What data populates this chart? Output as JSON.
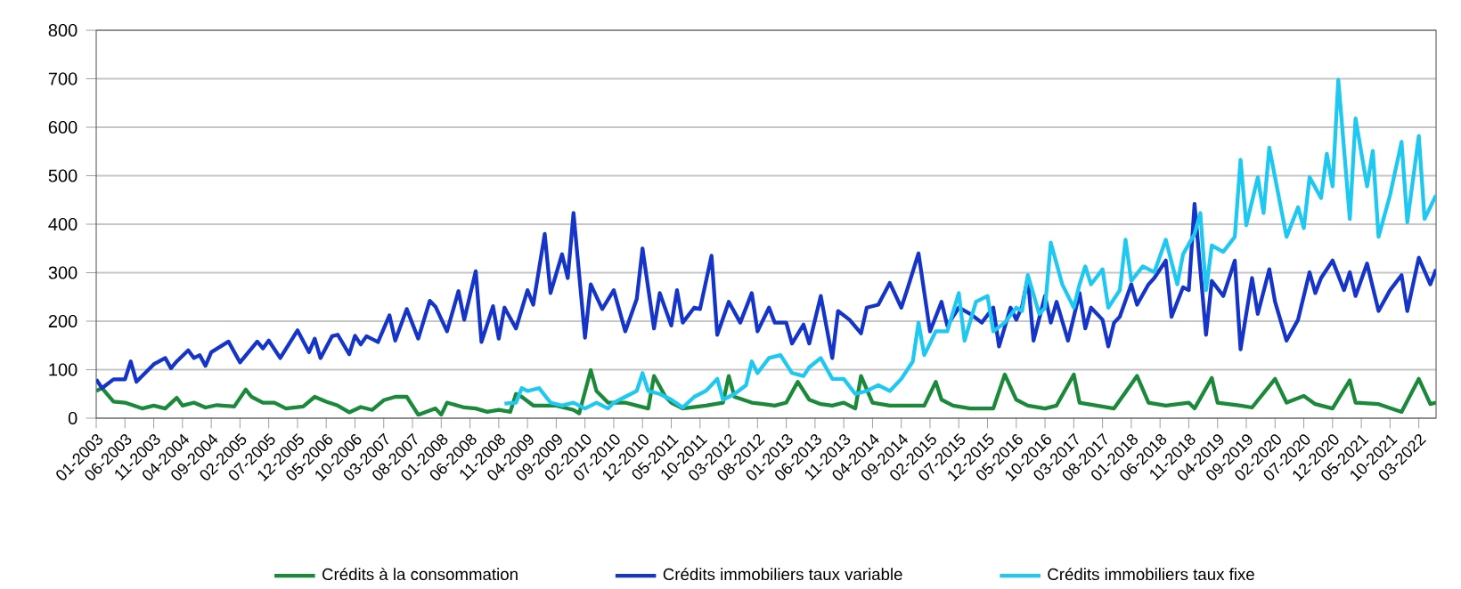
{
  "chart_data": {
    "type": "line",
    "xlim": [
      "2003-01",
      "2022-06"
    ],
    "ylim": [
      0,
      800
    ],
    "yticks": [
      0,
      100,
      200,
      300,
      400,
      500,
      600,
      700,
      800
    ],
    "xticks": [
      {
        "value": "2003-01",
        "label": "01-2003"
      },
      {
        "value": "2003-06",
        "label": "06-2003"
      },
      {
        "value": "2003-11",
        "label": "11-2003"
      },
      {
        "value": "2004-04",
        "label": "04-2004"
      },
      {
        "value": "2004-09",
        "label": "09-2004"
      },
      {
        "value": "2005-02",
        "label": "02-2005"
      },
      {
        "value": "2005-07",
        "label": "07-2005"
      },
      {
        "value": "2005-12",
        "label": "12-2005"
      },
      {
        "value": "2006-05",
        "label": "05-2006"
      },
      {
        "value": "2006-10",
        "label": "10-2006"
      },
      {
        "value": "2007-03",
        "label": "03-2007"
      },
      {
        "value": "2007-08",
        "label": "08-2007"
      },
      {
        "value": "2008-01",
        "label": "01-2008"
      },
      {
        "value": "2008-06",
        "label": "06-2008"
      },
      {
        "value": "2008-11",
        "label": "11-2008"
      },
      {
        "value": "2009-04",
        "label": "04-2009"
      },
      {
        "value": "2009-09",
        "label": "09-2009"
      },
      {
        "value": "2010-02",
        "label": "02-2010"
      },
      {
        "value": "2010-07",
        "label": "07-2010"
      },
      {
        "value": "2010-12",
        "label": "12-2010"
      },
      {
        "value": "2011-05",
        "label": "05-2011"
      },
      {
        "value": "2011-10",
        "label": "10-2011"
      },
      {
        "value": "2012-03",
        "label": "03-2012"
      },
      {
        "value": "2012-08",
        "label": "08-2012"
      },
      {
        "value": "2013-01",
        "label": "01-2013"
      },
      {
        "value": "2013-06",
        "label": "06-2013"
      },
      {
        "value": "2013-11",
        "label": "11-2013"
      },
      {
        "value": "2014-04",
        "label": "04-2014"
      },
      {
        "value": "2014-09",
        "label": "09-2014"
      },
      {
        "value": "2015-02",
        "label": "02-2015"
      },
      {
        "value": "2015-07",
        "label": "07-2015"
      },
      {
        "value": "2015-12",
        "label": "12-2015"
      },
      {
        "value": "2016-05",
        "label": "05-2016"
      },
      {
        "value": "2016-10",
        "label": "10-2016"
      },
      {
        "value": "2017-03",
        "label": "03-2017"
      },
      {
        "value": "2017-08",
        "label": "08-2017"
      },
      {
        "value": "2018-01",
        "label": "01-2018"
      },
      {
        "value": "2018-06",
        "label": "06-2018"
      },
      {
        "value": "2018-11",
        "label": "11-2018"
      },
      {
        "value": "2019-04",
        "label": "04-2019"
      },
      {
        "value": "2019-09",
        "label": "09-2019"
      },
      {
        "value": "2020-02",
        "label": "02-2020"
      },
      {
        "value": "2020-07",
        "label": "07-2020"
      },
      {
        "value": "2020-12",
        "label": "12-2020"
      },
      {
        "value": "2021-05",
        "label": "05-2021"
      },
      {
        "value": "2021-10",
        "label": "10-2021"
      },
      {
        "value": "2022-03",
        "label": "03-2022"
      }
    ],
    "grid": "y",
    "legend": "bottom",
    "marker": "none",
    "line_style": "solid",
    "series": [
      {
        "name": "Crédits à la consommation",
        "color": "#1a8a3a",
        "x": [
          "2003-01",
          "2003-02",
          "2003-04",
          "2003-06",
          "2003-09",
          "2003-11",
          "2004-01",
          "2004-03",
          "2004-04",
          "2004-06",
          "2004-08",
          "2004-10",
          "2005-01",
          "2005-03",
          "2005-04",
          "2005-06",
          "2005-08",
          "2005-10",
          "2006-01",
          "2006-03",
          "2006-05",
          "2006-07",
          "2006-09",
          "2006-11",
          "2007-01",
          "2007-03",
          "2007-05",
          "2007-07",
          "2007-09",
          "2007-12",
          "2008-01",
          "2008-02",
          "2008-05",
          "2008-07",
          "2008-09",
          "2008-11",
          "2009-01",
          "2009-02",
          "2009-03",
          "2009-05",
          "2009-09",
          "2009-12",
          "2010-01",
          "2010-03",
          "2010-04",
          "2010-06",
          "2010-09",
          "2010-11",
          "2011-01",
          "2011-02",
          "2011-04",
          "2011-05",
          "2011-07",
          "2011-11",
          "2012-02",
          "2012-03",
          "2012-04",
          "2012-07",
          "2012-09",
          "2012-11",
          "2013-01",
          "2013-03",
          "2013-05",
          "2013-07",
          "2013-09",
          "2013-11",
          "2014-01",
          "2014-02",
          "2014-04",
          "2014-07",
          "2014-10",
          "2015-01",
          "2015-03",
          "2015-04",
          "2015-06",
          "2015-09",
          "2015-11",
          "2016-01",
          "2016-03",
          "2016-05",
          "2016-07",
          "2016-10",
          "2016-12",
          "2017-03",
          "2017-04",
          "2017-07",
          "2017-10",
          "2018-02",
          "2018-04",
          "2018-07",
          "2018-11",
          "2018-12",
          "2019-03",
          "2019-04",
          "2019-08",
          "2019-10",
          "2020-02",
          "2020-04",
          "2020-07",
          "2020-09",
          "2020-12",
          "2021-03",
          "2021-04",
          "2021-08",
          "2021-12",
          "2022-03",
          "2022-05",
          "2022-06"
        ],
        "values": [
          56,
          62,
          34,
          32,
          20,
          26,
          20,
          42,
          26,
          32,
          22,
          27,
          24,
          59,
          44,
          32,
          32,
          20,
          24,
          44,
          34,
          26,
          12,
          23,
          17,
          37,
          44,
          44,
          7,
          20,
          7,
          32,
          22,
          20,
          13,
          17,
          13,
          50,
          44,
          26,
          26,
          17,
          10,
          99,
          56,
          32,
          32,
          26,
          20,
          87,
          44,
          32,
          20,
          26,
          32,
          87,
          44,
          32,
          29,
          26,
          32,
          75,
          38,
          29,
          26,
          32,
          20,
          87,
          32,
          26,
          26,
          26,
          75,
          38,
          26,
          20,
          20,
          20,
          90,
          38,
          26,
          20,
          26,
          90,
          32,
          26,
          20,
          87,
          32,
          26,
          32,
          20,
          83,
          32,
          26,
          22,
          81,
          32,
          46,
          29,
          20,
          78,
          32,
          29,
          13,
          81,
          29,
          32
        ]
      },
      {
        "name": "Crédits immobiliers taux variable",
        "color": "#1535c8",
        "x": [
          "2003-01",
          "2003-02",
          "2003-04",
          "2003-06",
          "2003-07",
          "2003-08",
          "2003-11",
          "2004-01",
          "2004-02",
          "2004-03",
          "2004-05",
          "2004-06",
          "2004-07",
          "2004-08",
          "2004-09",
          "2004-12",
          "2005-02",
          "2005-05",
          "2005-06",
          "2005-07",
          "2005-09",
          "2005-12",
          "2006-02",
          "2006-03",
          "2006-04",
          "2006-06",
          "2006-07",
          "2006-09",
          "2006-10",
          "2006-11",
          "2006-12",
          "2007-02",
          "2007-04",
          "2007-05",
          "2007-07",
          "2007-09",
          "2007-11",
          "2007-12",
          "2008-02",
          "2008-04",
          "2008-05",
          "2008-07",
          "2008-08",
          "2008-10",
          "2008-11",
          "2008-12",
          "2009-02",
          "2009-04",
          "2009-05",
          "2009-07",
          "2009-08",
          "2009-10",
          "2009-11",
          "2009-12",
          "2010-02",
          "2010-03",
          "2010-05",
          "2010-07",
          "2010-09",
          "2010-11",
          "2010-12",
          "2011-02",
          "2011-03",
          "2011-05",
          "2011-06",
          "2011-07",
          "2011-09",
          "2011-10",
          "2011-12",
          "2012-01",
          "2012-03",
          "2012-05",
          "2012-07",
          "2012-08",
          "2012-10",
          "2012-11",
          "2013-01",
          "2013-02",
          "2013-04",
          "2013-05",
          "2013-07",
          "2013-09",
          "2013-10",
          "2013-12",
          "2014-02",
          "2014-03",
          "2014-05",
          "2014-07",
          "2014-09",
          "2014-10",
          "2014-12",
          "2015-02",
          "2015-04",
          "2015-05",
          "2015-07",
          "2015-09",
          "2015-11",
          "2016-01",
          "2016-02",
          "2016-04",
          "2016-05",
          "2016-06",
          "2016-07",
          "2016-08",
          "2016-10",
          "2016-11",
          "2016-12",
          "2017-02",
          "2017-04",
          "2017-05",
          "2017-06",
          "2017-08",
          "2017-09",
          "2017-10",
          "2017-11",
          "2018-01",
          "2018-02",
          "2018-04",
          "2018-05",
          "2018-07",
          "2018-08",
          "2018-10",
          "2018-11",
          "2018-12",
          "2019-02",
          "2019-03",
          "2019-05",
          "2019-07",
          "2019-08",
          "2019-10",
          "2019-11",
          "2020-01",
          "2020-02",
          "2020-04",
          "2020-06",
          "2020-08",
          "2020-09",
          "2020-10",
          "2020-12",
          "2021-02",
          "2021-03",
          "2021-04",
          "2021-06",
          "2021-08",
          "2021-10",
          "2021-12",
          "2022-01",
          "2022-03",
          "2022-05",
          "2022-06"
        ],
        "values": [
          80,
          62,
          80,
          80,
          117,
          75,
          111,
          124,
          103,
          117,
          140,
          124,
          130,
          108,
          136,
          158,
          115,
          158,
          144,
          160,
          124,
          181,
          136,
          164,
          124,
          169,
          172,
          132,
          170,
          152,
          169,
          157,
          212,
          160,
          225,
          164,
          242,
          230,
          179,
          262,
          203,
          303,
          157,
          231,
          164,
          228,
          185,
          264,
          234,
          380,
          258,
          338,
          289,
          423,
          166,
          276,
          225,
          264,
          179,
          246,
          350,
          185,
          258,
          191,
          264,
          197,
          228,
          225,
          335,
          172,
          240,
          197,
          258,
          179,
          228,
          197,
          197,
          154,
          193,
          154,
          252,
          124,
          221,
          203,
          175,
          228,
          234,
          279,
          228,
          264,
          340,
          179,
          240,
          191,
          228,
          215,
          197,
          228,
          148,
          228,
          203,
          230,
          289,
          160,
          252,
          197,
          240,
          160,
          258,
          185,
          228,
          203,
          148,
          197,
          209,
          276,
          234,
          276,
          289,
          325,
          209,
          270,
          264,
          442,
          172,
          283,
          252,
          325,
          142,
          289,
          215,
          307,
          240,
          160,
          203,
          301,
          258,
          289,
          325,
          264,
          301,
          252,
          319,
          221,
          264,
          295,
          221,
          331,
          276,
          307
        ]
      },
      {
        "name": "Crédits immobiliers taux fixe",
        "color": "#1ec8f0",
        "x": [
          "2008-12",
          "2009-02",
          "2009-03",
          "2009-04",
          "2009-06",
          "2009-08",
          "2009-10",
          "2009-12",
          "2010-02",
          "2010-04",
          "2010-06",
          "2010-07",
          "2010-09",
          "2010-11",
          "2010-12",
          "2011-01",
          "2011-03",
          "2011-05",
          "2011-07",
          "2011-09",
          "2011-11",
          "2012-01",
          "2012-02",
          "2012-04",
          "2012-06",
          "2012-07",
          "2012-08",
          "2012-10",
          "2012-12",
          "2013-02",
          "2013-04",
          "2013-05",
          "2013-07",
          "2013-09",
          "2013-11",
          "2014-01",
          "2014-03",
          "2014-05",
          "2014-07",
          "2014-09",
          "2014-11",
          "2014-12",
          "2015-01",
          "2015-03",
          "2015-05",
          "2015-07",
          "2015-08",
          "2015-10",
          "2015-12",
          "2016-01",
          "2016-03",
          "2016-05",
          "2016-06",
          "2016-07",
          "2016-09",
          "2016-10",
          "2016-11",
          "2017-01",
          "2017-03",
          "2017-04",
          "2017-05",
          "2017-06",
          "2017-08",
          "2017-09",
          "2017-11",
          "2017-12",
          "2018-01",
          "2018-03",
          "2018-05",
          "2018-07",
          "2018-09",
          "2018-10",
          "2018-12",
          "2019-01",
          "2019-02",
          "2019-03",
          "2019-05",
          "2019-07",
          "2019-08",
          "2019-09",
          "2019-11",
          "2019-12",
          "2020-01",
          "2020-03",
          "2020-04",
          "2020-06",
          "2020-07",
          "2020-08",
          "2020-10",
          "2020-11",
          "2020-12",
          "2021-01",
          "2021-03",
          "2021-04",
          "2021-06",
          "2021-07",
          "2021-08",
          "2021-10",
          "2021-12",
          "2022-01",
          "2022-03",
          "2022-04",
          "2022-06"
        ],
        "values": [
          30,
          32,
          62,
          56,
          62,
          32,
          26,
          32,
          20,
          32,
          20,
          32,
          44,
          56,
          93,
          56,
          50,
          38,
          22,
          44,
          56,
          81,
          38,
          50,
          68,
          117,
          93,
          124,
          130,
          93,
          87,
          105,
          124,
          81,
          81,
          50,
          56,
          68,
          56,
          81,
          117,
          197,
          130,
          179,
          179,
          258,
          160,
          240,
          252,
          179,
          197,
          228,
          221,
          295,
          215,
          228,
          362,
          276,
          228,
          276,
          313,
          276,
          307,
          228,
          264,
          368,
          283,
          313,
          301,
          368,
          276,
          338,
          380,
          423,
          264,
          356,
          343,
          374,
          533,
          398,
          497,
          423,
          558,
          435,
          374,
          435,
          392,
          497,
          454,
          545,
          478,
          698,
          411,
          618,
          478,
          551,
          374,
          460,
          570,
          404,
          582,
          411,
          460
        ]
      }
    ]
  }
}
